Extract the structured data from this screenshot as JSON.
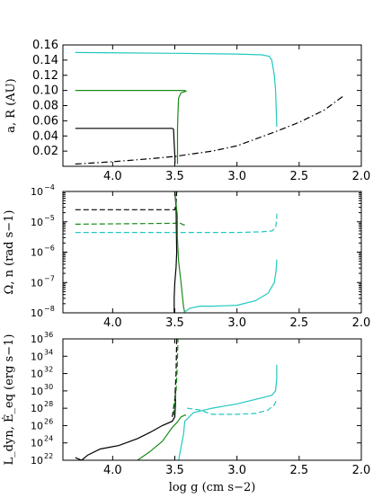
{
  "colors": {
    "black": "#000000",
    "green": "#1a8a1a",
    "cyan": "#22c8c0"
  },
  "chart_data": [
    {
      "type": "line",
      "panel": "top",
      "ylabel": "a, R (AU)",
      "xlim": [
        4.4,
        2.0
      ],
      "ylim": [
        0.0,
        0.16
      ],
      "x_ticks": [
        4.0,
        3.5,
        3.0,
        2.5,
        2.0
      ],
      "x_tick_labels": [
        "4.0",
        "3.5",
        "3.0",
        "2.5",
        "2.0"
      ],
      "y_ticks": [
        0.02,
        0.04,
        0.06,
        0.08,
        0.1,
        0.12,
        0.14,
        0.16
      ],
      "y_tick_labels": [
        "0.02",
        "0.04",
        "0.06",
        "0.08",
        "0.10",
        "0.12",
        "0.14",
        "0.16"
      ],
      "series": [
        {
          "color": "black",
          "dash": "solid",
          "points": [
            [
              4.3,
              0.05
            ],
            [
              3.52,
              0.05
            ],
            [
              3.51,
              0.049
            ],
            [
              3.505,
              0.03
            ],
            [
              3.5,
              0.015
            ],
            [
              3.498,
              0.004
            ]
          ]
        },
        {
          "color": "green",
          "dash": "solid",
          "points": [
            [
              4.3,
              0.1
            ],
            [
              3.5,
              0.1
            ],
            [
              3.42,
              0.1
            ],
            [
              3.41,
              0.099
            ],
            [
              3.45,
              0.097
            ],
            [
              3.47,
              0.09
            ],
            [
              3.475,
              0.07
            ],
            [
              3.478,
              0.05
            ],
            [
              3.478,
              0.03
            ],
            [
              3.478,
              0.01
            ],
            [
              3.478,
              0.003
            ]
          ]
        },
        {
          "color": "cyan",
          "dash": "solid",
          "points": [
            [
              4.3,
              0.15
            ],
            [
              3.5,
              0.149
            ],
            [
              3.0,
              0.148
            ],
            [
              2.8,
              0.147
            ],
            [
              2.74,
              0.145
            ],
            [
              2.72,
              0.14
            ],
            [
              2.7,
              0.12
            ],
            [
              2.69,
              0.1
            ],
            [
              2.685,
              0.08
            ],
            [
              2.682,
              0.06
            ],
            [
              2.68,
              0.052
            ]
          ]
        },
        {
          "color": "black",
          "dash": "dashdot",
          "points": [
            [
              4.3,
              0.003
            ],
            [
              4.0,
              0.006
            ],
            [
              3.7,
              0.01
            ],
            [
              3.5,
              0.013
            ],
            [
              3.2,
              0.02
            ],
            [
              3.0,
              0.027
            ],
            [
              2.7,
              0.045
            ],
            [
              2.5,
              0.058
            ],
            [
              2.3,
              0.074
            ],
            [
              2.15,
              0.092
            ]
          ]
        }
      ]
    },
    {
      "type": "line",
      "panel": "middle",
      "ylabel": "Ω, n (rad s−1)",
      "scale": "log",
      "xlim": [
        4.4,
        2.0
      ],
      "ylim_exp": [
        -8,
        -4
      ],
      "x_ticks": [
        4.0,
        3.5,
        3.0,
        2.5,
        2.0
      ],
      "x_tick_labels": [
        "4.0",
        "3.5",
        "3.0",
        "2.5",
        "2.0"
      ],
      "y_tick_exponents": [
        -8,
        -7,
        -6,
        -5,
        -4
      ],
      "y_tick_labels": [
        "10",
        "10",
        "10",
        "10",
        "10"
      ],
      "y_tick_exponent_labels": [
        "−8",
        "−7",
        "−6",
        "−5",
        "−4"
      ],
      "series": [
        {
          "color": "black",
          "dash": "dashed",
          "log10_y": true,
          "points": [
            [
              4.3,
              -4.6
            ],
            [
              3.52,
              -4.6
            ],
            [
              3.5,
              -4.6
            ],
            [
              3.49,
              -4.4
            ],
            [
              3.485,
              -4.0
            ]
          ]
        },
        {
          "color": "green",
          "dash": "dashed",
          "log10_y": true,
          "points": [
            [
              4.3,
              -5.08
            ],
            [
              3.5,
              -5.05
            ],
            [
              3.48,
              -5.0
            ],
            [
              3.43,
              -5.1
            ],
            [
              3.41,
              -5.1
            ]
          ]
        },
        {
          "color": "cyan",
          "dash": "dashed",
          "log10_y": true,
          "points": [
            [
              4.3,
              -5.35
            ],
            [
              3.5,
              -5.35
            ],
            [
              3.0,
              -5.35
            ],
            [
              2.8,
              -5.33
            ],
            [
              2.72,
              -5.3
            ],
            [
              2.69,
              -5.2
            ],
            [
              2.68,
              -4.9
            ],
            [
              2.68,
              -4.7
            ]
          ]
        },
        {
          "color": "black",
          "dash": "solid",
          "log10_y": true,
          "points": [
            [
              3.5,
              -4.0
            ],
            [
              3.49,
              -4.5
            ],
            [
              3.488,
              -5.2
            ],
            [
              3.485,
              -6.0
            ],
            [
              3.49,
              -6.5
            ],
            [
              3.5,
              -7.0
            ],
            [
              3.505,
              -7.5
            ],
            [
              3.505,
              -8.0
            ]
          ]
        },
        {
          "color": "green",
          "dash": "solid",
          "log10_y": true,
          "points": [
            [
              3.5,
              -4.0
            ],
            [
              3.48,
              -4.8
            ],
            [
              3.48,
              -5.5
            ],
            [
              3.47,
              -6.3
            ],
            [
              3.45,
              -7.0
            ],
            [
              3.43,
              -7.8
            ],
            [
              3.42,
              -8.0
            ]
          ]
        },
        {
          "color": "cyan",
          "dash": "solid",
          "log10_y": true,
          "points": [
            [
              3.43,
              -8.0
            ],
            [
              3.38,
              -7.85
            ],
            [
              3.3,
              -7.78
            ],
            [
              3.2,
              -7.78
            ],
            [
              3.0,
              -7.75
            ],
            [
              2.85,
              -7.6
            ],
            [
              2.75,
              -7.35
            ],
            [
              2.7,
              -7.0
            ],
            [
              2.685,
              -6.6
            ],
            [
              2.68,
              -6.25
            ]
          ]
        }
      ]
    },
    {
      "type": "line",
      "panel": "bottom",
      "ylabel": "L_dyn, Ė_eq (erg s−1)",
      "xlabel": "log g (cm s−2)",
      "scale": "log",
      "xlim": [
        4.4,
        2.0
      ],
      "ylim_exp": [
        22,
        36
      ],
      "x_ticks": [
        4.0,
        3.5,
        3.0,
        2.5,
        2.0
      ],
      "x_tick_labels": [
        "4.0",
        "3.5",
        "3.0",
        "2.5",
        "2.0"
      ],
      "y_tick_exponents": [
        22,
        24,
        26,
        28,
        30,
        32,
        34,
        36
      ],
      "y_tick_labels": [
        "10",
        "10",
        "10",
        "10",
        "10",
        "10",
        "10",
        "10"
      ],
      "y_tick_exponent_labels": [
        "22",
        "24",
        "26",
        "28",
        "30",
        "32",
        "34",
        "36"
      ],
      "series": [
        {
          "color": "black",
          "dash": "solid",
          "log10_y": true,
          "points": [
            [
              4.3,
              22.3
            ],
            [
              4.25,
              22.0
            ],
            [
              4.2,
              22.6
            ],
            [
              4.1,
              23.3
            ],
            [
              3.95,
              23.7
            ],
            [
              3.8,
              24.5
            ],
            [
              3.7,
              25.2
            ],
            [
              3.6,
              26.0
            ],
            [
              3.52,
              26.5
            ],
            [
              3.5,
              27.0
            ],
            [
              3.495,
              28.5
            ],
            [
              3.495,
              30.0
            ]
          ]
        },
        {
          "color": "green",
          "dash": "solid",
          "log10_y": true,
          "points": [
            [
              3.8,
              22.0
            ],
            [
              3.7,
              23.0
            ],
            [
              3.6,
              24.2
            ],
            [
              3.52,
              25.8
            ],
            [
              3.48,
              26.4
            ],
            [
              3.45,
              27.0
            ],
            [
              3.42,
              27.2
            ],
            [
              3.41,
              27.2
            ]
          ]
        },
        {
          "color": "cyan",
          "dash": "solid",
          "log10_y": true,
          "points": [
            [
              3.47,
              22.0
            ],
            [
              3.45,
              23.5
            ],
            [
              3.43,
              25.0
            ],
            [
              3.42,
              26.5
            ],
            [
              3.35,
              27.5
            ],
            [
              3.2,
              28.0
            ],
            [
              3.0,
              28.5
            ],
            [
              2.8,
              29.2
            ],
            [
              2.72,
              29.5
            ],
            [
              2.69,
              30.0
            ],
            [
              2.68,
              31.5
            ],
            [
              2.68,
              33.0
            ]
          ]
        },
        {
          "color": "black",
          "dash": "dashed",
          "log10_y": true,
          "points": [
            [
              3.52,
              27.0
            ],
            [
              3.5,
              29.0
            ],
            [
              3.49,
              32.0
            ],
            [
              3.485,
              36.0
            ]
          ]
        },
        {
          "color": "green",
          "dash": "dashed",
          "log10_y": true,
          "points": [
            [
              3.51,
              27.2
            ],
            [
              3.49,
              30.0
            ],
            [
              3.48,
              33.0
            ],
            [
              3.475,
              36.0
            ]
          ]
        },
        {
          "color": "cyan",
          "dash": "dashed",
          "log10_y": true,
          "points": [
            [
              3.4,
              28.0
            ],
            [
              3.3,
              27.8
            ],
            [
              3.2,
              27.3
            ],
            [
              3.0,
              27.3
            ],
            [
              2.85,
              27.4
            ],
            [
              2.75,
              27.8
            ],
            [
              2.7,
              28.4
            ],
            [
              2.68,
              29.0
            ]
          ]
        }
      ]
    }
  ]
}
